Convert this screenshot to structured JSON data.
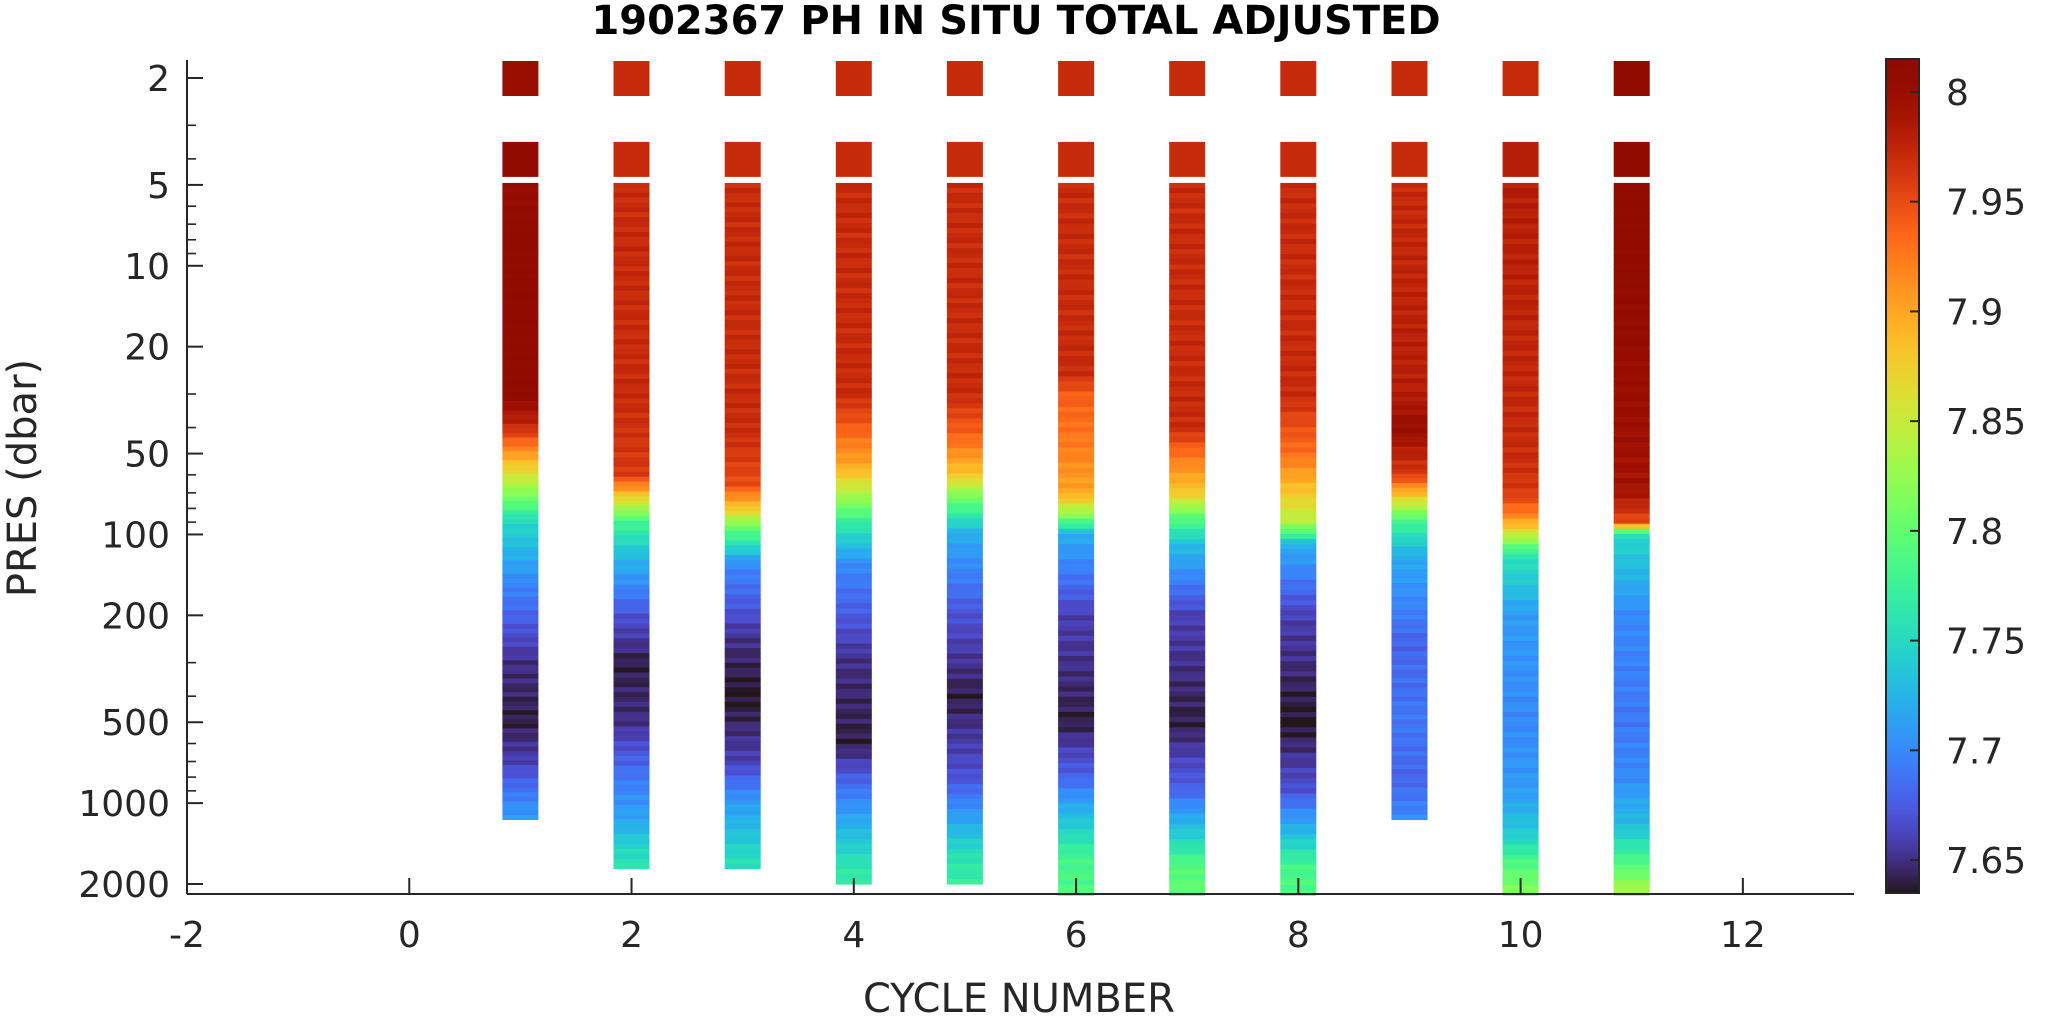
{
  "chart_data": {
    "type": "heatmap",
    "title": "1902367  PH IN SITU TOTAL ADJUSTED",
    "xlabel": "CYCLE NUMBER",
    "ylabel": "PRES (dbar)",
    "xlim": [
      -2,
      13
    ],
    "x_ticks": [
      -2,
      0,
      2,
      4,
      6,
      8,
      10,
      12
    ],
    "x_tick_labels": [
      "-2",
      "0",
      "2",
      "4",
      "6",
      "8",
      "10",
      "12"
    ],
    "y_scale": "log",
    "y_direction": "reverse",
    "ylim": [
      1.6,
      2300
    ],
    "y_ticks": [
      2,
      5,
      10,
      20,
      50,
      100,
      200,
      500,
      1000,
      2000
    ],
    "y_tick_labels": [
      "2",
      "5",
      "10",
      "20",
      "50",
      "100",
      "200",
      "500",
      "1000",
      "2000"
    ],
    "colorbar": {
      "colormap": "turbo",
      "clim": [
        7.635,
        8.015
      ],
      "ticks": [
        7.65,
        7.7,
        7.75,
        7.8,
        7.85,
        7.9,
        7.95,
        8
      ],
      "tick_labels": [
        "7.65",
        "7.7",
        "7.75",
        "7.8",
        "7.85",
        "7.9",
        "7.95",
        "8"
      ]
    },
    "grid": false,
    "profiles": [
      {
        "cycle": 1,
        "max_pres": 1150,
        "near_surface": [
          {
            "pres": 2,
            "ph": 8.0
          },
          {
            "pres": 4,
            "ph": 8.01
          }
        ],
        "points": [
          [
            5,
            8.0
          ],
          [
            7,
            8.01
          ],
          [
            30,
            8.01
          ],
          [
            40,
            7.97
          ],
          [
            55,
            7.88
          ],
          [
            70,
            7.82
          ],
          [
            90,
            7.75
          ],
          [
            150,
            7.7
          ],
          [
            300,
            7.65
          ],
          [
            500,
            7.64
          ],
          [
            700,
            7.66
          ],
          [
            1000,
            7.7
          ],
          [
            1150,
            7.71
          ]
        ]
      },
      {
        "cycle": 2,
        "max_pres": 1750,
        "near_surface": [
          {
            "pres": 2,
            "ph": 7.97
          },
          {
            "pres": 4,
            "ph": 7.97
          }
        ],
        "points": [
          [
            5,
            7.97
          ],
          [
            30,
            7.97
          ],
          [
            60,
            7.96
          ],
          [
            75,
            7.86
          ],
          [
            90,
            7.78
          ],
          [
            120,
            7.73
          ],
          [
            200,
            7.67
          ],
          [
            300,
            7.64
          ],
          [
            500,
            7.65
          ],
          [
            800,
            7.69
          ],
          [
            1200,
            7.72
          ],
          [
            1500,
            7.75
          ],
          [
            1750,
            7.76
          ]
        ]
      },
      {
        "cycle": 3,
        "max_pres": 1750,
        "near_surface": [
          {
            "pres": 2,
            "ph": 7.97
          },
          {
            "pres": 4,
            "ph": 7.97
          }
        ],
        "points": [
          [
            5,
            7.97
          ],
          [
            40,
            7.97
          ],
          [
            65,
            7.95
          ],
          [
            80,
            7.88
          ],
          [
            95,
            7.8
          ],
          [
            130,
            7.7
          ],
          [
            250,
            7.65
          ],
          [
            400,
            7.635
          ],
          [
            700,
            7.66
          ],
          [
            1000,
            7.71
          ],
          [
            1400,
            7.74
          ],
          [
            1750,
            7.76
          ]
        ]
      },
      {
        "cycle": 4,
        "max_pres": 2000,
        "near_surface": [
          {
            "pres": 2,
            "ph": 7.97
          },
          {
            "pres": 4,
            "ph": 7.97
          }
        ],
        "points": [
          [
            5,
            7.97
          ],
          [
            30,
            7.97
          ],
          [
            40,
            7.94
          ],
          [
            55,
            7.9
          ],
          [
            70,
            7.84
          ],
          [
            90,
            7.77
          ],
          [
            130,
            7.7
          ],
          [
            300,
            7.65
          ],
          [
            600,
            7.64
          ],
          [
            900,
            7.69
          ],
          [
            1300,
            7.73
          ],
          [
            1700,
            7.76
          ],
          [
            2000,
            7.77
          ]
        ]
      },
      {
        "cycle": 5,
        "max_pres": 2000,
        "near_surface": [
          {
            "pres": 2,
            "ph": 7.97
          },
          {
            "pres": 4,
            "ph": 7.97
          }
        ],
        "points": [
          [
            5,
            7.97
          ],
          [
            30,
            7.97
          ],
          [
            45,
            7.93
          ],
          [
            60,
            7.88
          ],
          [
            75,
            7.8
          ],
          [
            100,
            7.72
          ],
          [
            200,
            7.67
          ],
          [
            400,
            7.64
          ],
          [
            800,
            7.67
          ],
          [
            1200,
            7.72
          ],
          [
            1600,
            7.76
          ],
          [
            2000,
            7.77
          ]
        ]
      },
      {
        "cycle": 6,
        "max_pres": 2200,
        "near_surface": [
          {
            "pres": 2,
            "ph": 7.97
          },
          {
            "pres": 4,
            "ph": 7.97
          }
        ],
        "points": [
          [
            5,
            7.97
          ],
          [
            25,
            7.97
          ],
          [
            30,
            7.94
          ],
          [
            50,
            7.92
          ],
          [
            70,
            7.9
          ],
          [
            85,
            7.82
          ],
          [
            100,
            7.72
          ],
          [
            200,
            7.66
          ],
          [
            500,
            7.64
          ],
          [
            800,
            7.68
          ],
          [
            1200,
            7.74
          ],
          [
            1600,
            7.78
          ],
          [
            2200,
            7.79
          ]
        ]
      },
      {
        "cycle": 7,
        "max_pres": 2200,
        "near_surface": [
          {
            "pres": 2,
            "ph": 7.97
          },
          {
            "pres": 4,
            "ph": 7.97
          }
        ],
        "points": [
          [
            5,
            7.97
          ],
          [
            40,
            7.97
          ],
          [
            50,
            7.93
          ],
          [
            70,
            7.88
          ],
          [
            85,
            7.8
          ],
          [
            110,
            7.73
          ],
          [
            200,
            7.66
          ],
          [
            500,
            7.64
          ],
          [
            900,
            7.68
          ],
          [
            1300,
            7.74
          ],
          [
            1700,
            7.79
          ],
          [
            2200,
            7.8
          ]
        ]
      },
      {
        "cycle": 8,
        "max_pres": 2200,
        "near_surface": [
          {
            "pres": 2,
            "ph": 7.97
          },
          {
            "pres": 4,
            "ph": 7.97
          }
        ],
        "points": [
          [
            5,
            7.97
          ],
          [
            30,
            7.97
          ],
          [
            50,
            7.93
          ],
          [
            70,
            7.88
          ],
          [
            90,
            7.84
          ],
          [
            110,
            7.72
          ],
          [
            200,
            7.66
          ],
          [
            500,
            7.635
          ],
          [
            900,
            7.67
          ],
          [
            1300,
            7.73
          ],
          [
            1700,
            7.78
          ],
          [
            2200,
            7.79
          ]
        ]
      },
      {
        "cycle": 9,
        "max_pres": 1150,
        "near_surface": [
          {
            "pres": 2,
            "ph": 7.97
          },
          {
            "pres": 4,
            "ph": 7.97
          }
        ],
        "points": [
          [
            5,
            7.97
          ],
          [
            30,
            7.98
          ],
          [
            40,
            8.0
          ],
          [
            60,
            7.96
          ],
          [
            75,
            7.86
          ],
          [
            90,
            7.78
          ],
          [
            120,
            7.72
          ],
          [
            250,
            7.68
          ],
          [
            500,
            7.69
          ],
          [
            800,
            7.68
          ],
          [
            1150,
            7.7
          ]
        ]
      },
      {
        "cycle": 10,
        "max_pres": 2200,
        "near_surface": [
          {
            "pres": 2,
            "ph": 7.97
          },
          {
            "pres": 4,
            "ph": 7.98
          }
        ],
        "points": [
          [
            5,
            7.98
          ],
          [
            50,
            7.97
          ],
          [
            70,
            7.96
          ],
          [
            85,
            7.92
          ],
          [
            100,
            7.85
          ],
          [
            120,
            7.76
          ],
          [
            200,
            7.71
          ],
          [
            500,
            7.7
          ],
          [
            900,
            7.71
          ],
          [
            1300,
            7.74
          ],
          [
            1700,
            7.79
          ],
          [
            2200,
            7.82
          ]
        ]
      },
      {
        "cycle": 11,
        "max_pres": 2200,
        "near_surface": [
          {
            "pres": 2,
            "ph": 8.01
          },
          {
            "pres": 4,
            "ph": 8.01
          }
        ],
        "points": [
          [
            5,
            8.01
          ],
          [
            7,
            8.01
          ],
          [
            30,
            8.0
          ],
          [
            70,
            7.99
          ],
          [
            90,
            7.95
          ],
          [
            100,
            7.75
          ],
          [
            200,
            7.7
          ],
          [
            500,
            7.69
          ],
          [
            800,
            7.7
          ],
          [
            1200,
            7.73
          ],
          [
            1600,
            7.78
          ],
          [
            2200,
            7.84
          ]
        ]
      }
    ]
  }
}
